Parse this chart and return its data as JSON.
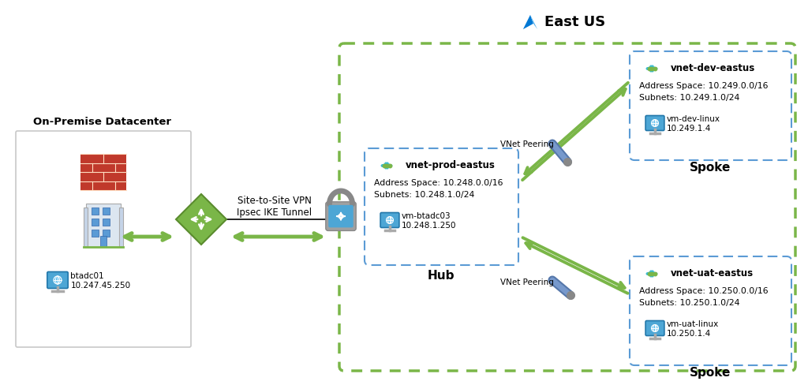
{
  "bg_color": "#ffffff",
  "title_eastus": "East US",
  "on_premise_label": "On-Premise Datacenter",
  "hub_label": "Hub",
  "spoke_label": "Spoke",
  "vpn_label1": "Site-to-Site VPN",
  "vpn_label2": "Ipsec IKE Tunnel",
  "vnet_peering_top_label": "VNet Peering",
  "vnet_peering_bot_label": "VNet Peering",
  "hub_vnet_name": "vnet-prod-eastus",
  "hub_addr": "Address Space: 10.248.0.0/16",
  "hub_subnets": "Subnets: 10.248.1.0/24",
  "hub_vm_name": "vm-btadc03",
  "hub_vm_ip": "10.248.1.250",
  "dev_vnet_name": "vnet-dev-eastus",
  "dev_addr": "Address Space: 10.249.0.0/16",
  "dev_subnets": "Subnets: 10.249.1.0/24",
  "dev_vm_name": "vm-dev-linux",
  "dev_vm_ip": "10.249.1.4",
  "uat_vnet_name": "vnet-uat-eastus",
  "uat_addr": "Address Space: 10.250.0.0/16",
  "uat_subnets": "Subnets: 10.250.1.0/24",
  "uat_vm_name": "vm-uat-linux",
  "uat_vm_ip": "10.250.1.4",
  "onprem_vm_name": "btadc01",
  "onprem_vm_ip": "10.247.45.250",
  "azure_blue": "#0078d4",
  "green_arrow": "#7ab648",
  "eastus_box_color": "#7ab648",
  "spoke_box_color": "#5b9bd5",
  "hub_box_color": "#5b9bd5",
  "onprem_box_color": "#c8c8c8",
  "lock_gray": "#9e9e9e",
  "lock_blue": "#4da6d5",
  "vnet_cyan": "#3abcd4",
  "vnet_green": "#7ab648",
  "monitor_blue": "#3399cc",
  "router_green": "#7ab648",
  "router_green_dark": "#5a8c2e"
}
